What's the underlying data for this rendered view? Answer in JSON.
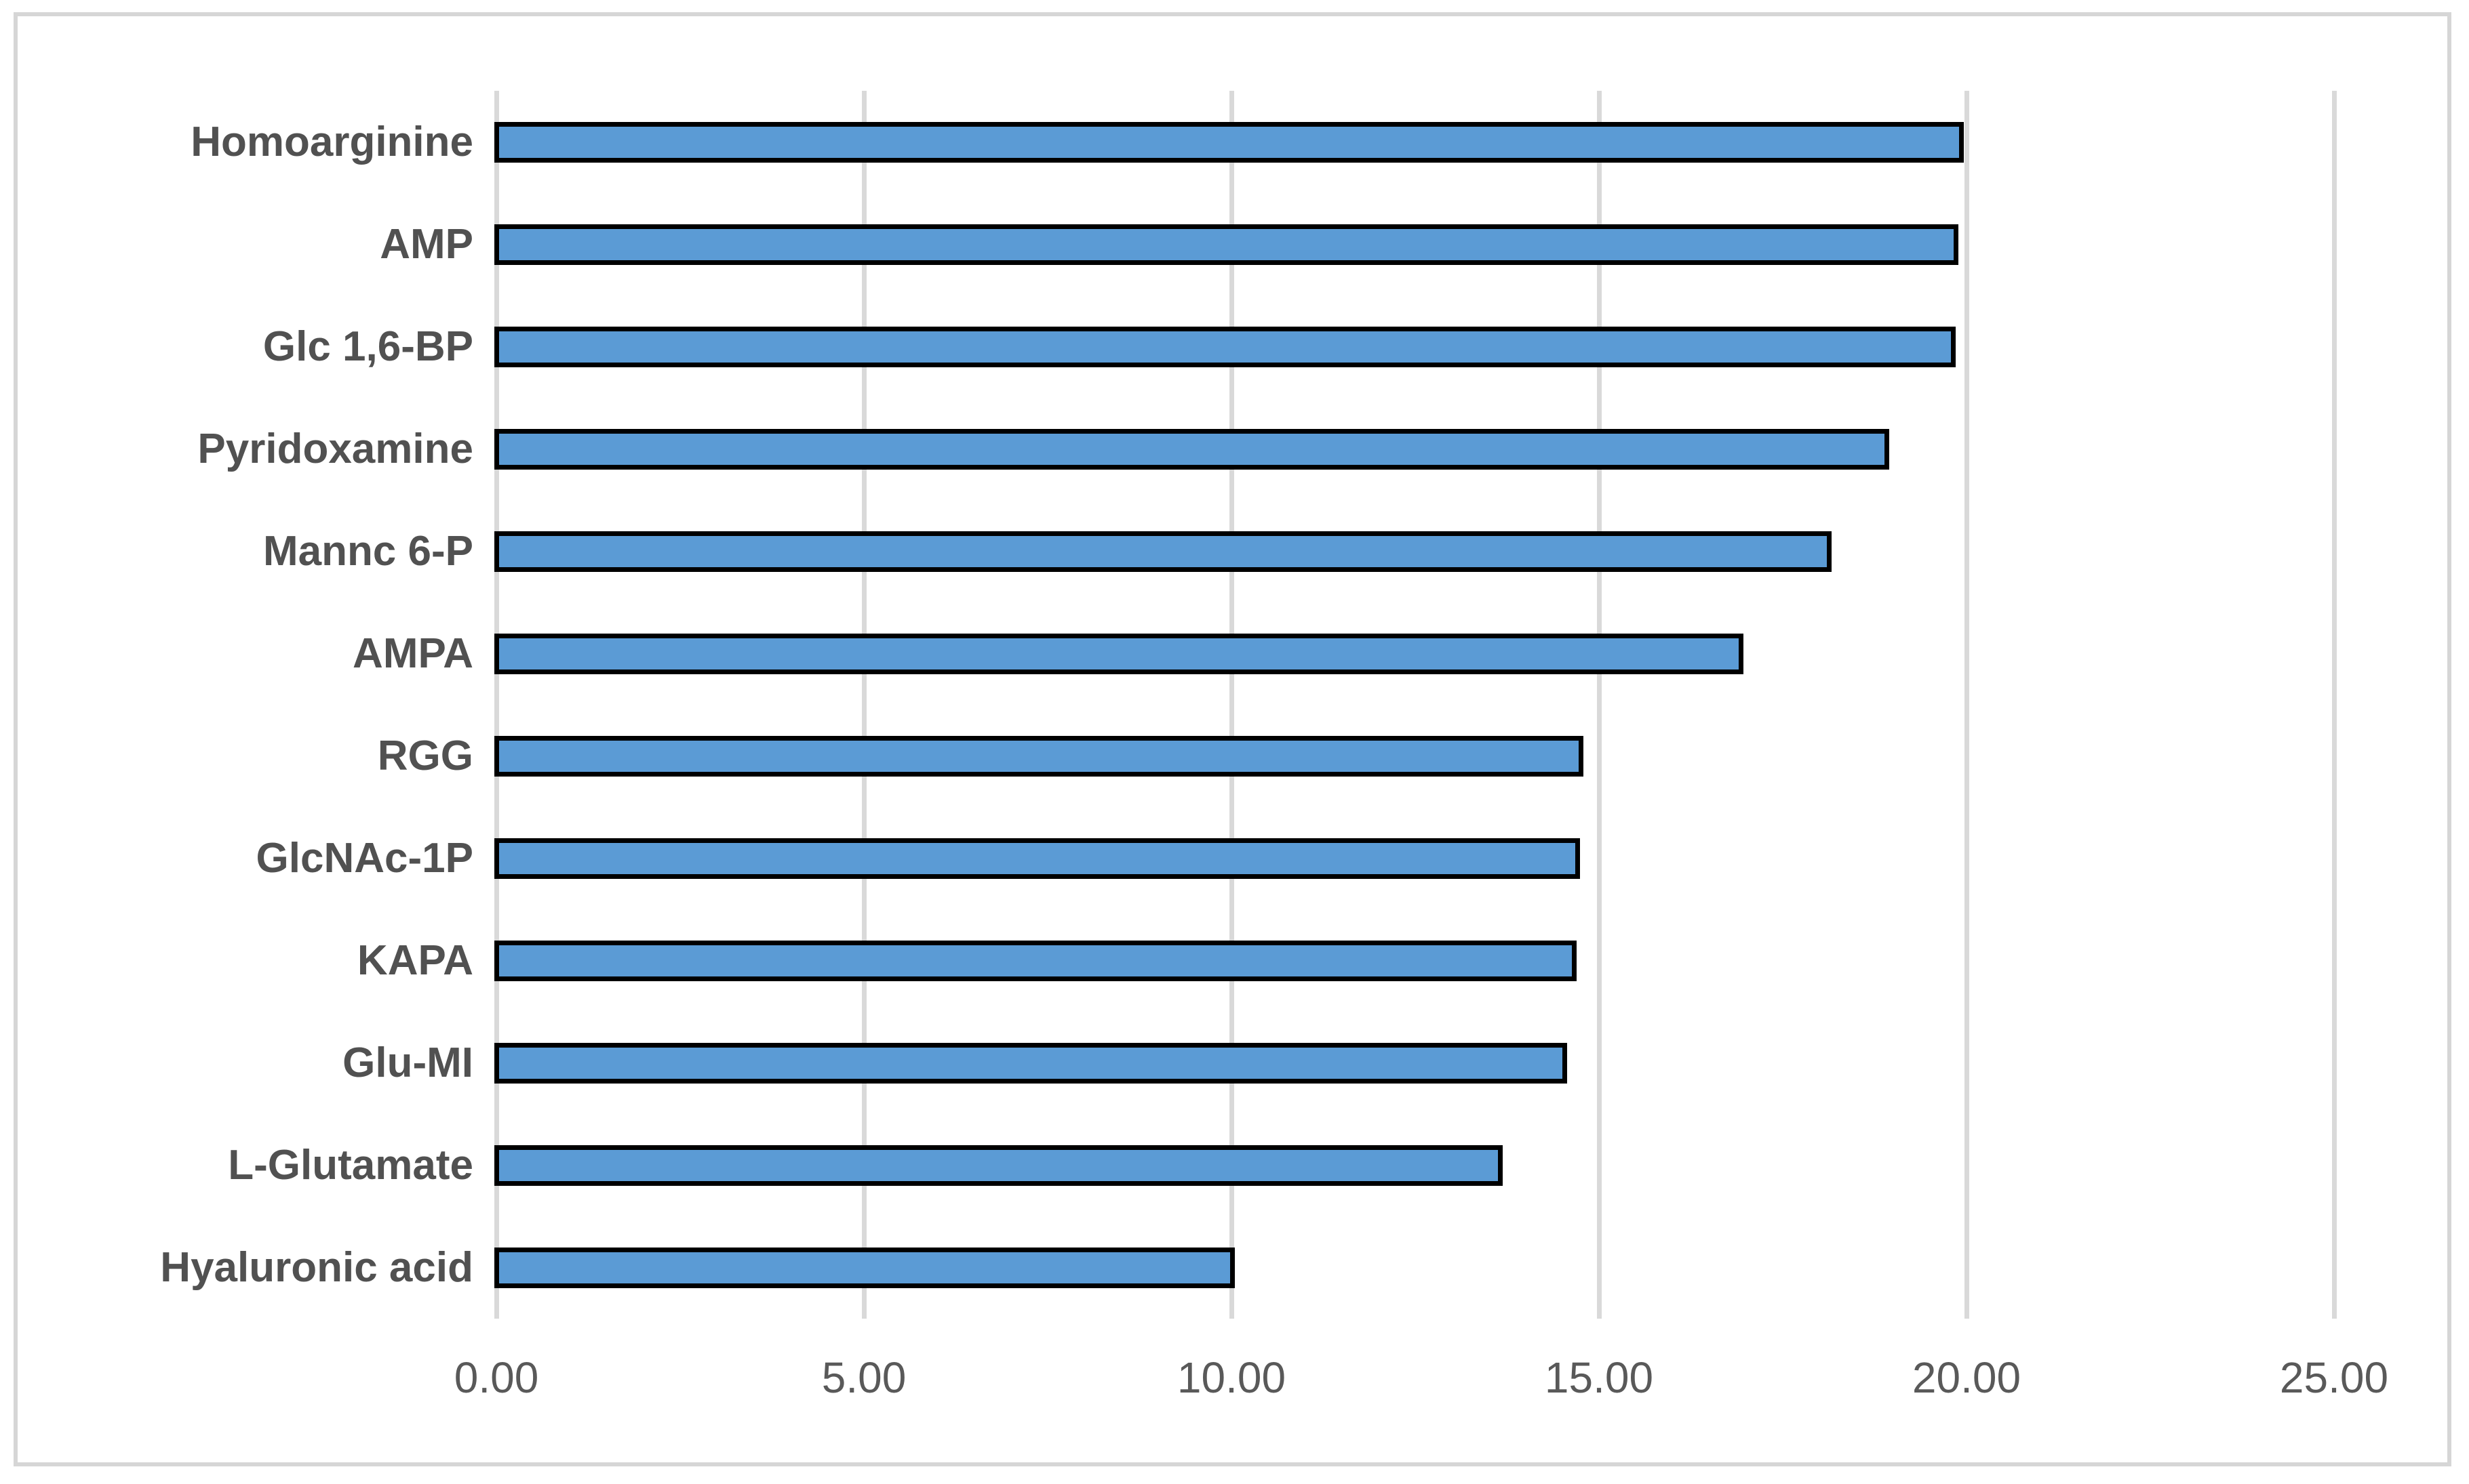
{
  "chart_data": {
    "type": "bar",
    "orientation": "horizontal",
    "title": "",
    "xlabel": "",
    "ylabel": "",
    "legend": "none",
    "grid": "vertical",
    "categories": [
      "Homoarginine",
      "AMP",
      "Glc 1,6-BP",
      "Pyridoxamine",
      "Mannc 6-P",
      "AMPA",
      "RGG",
      "GlcNAc-1P",
      "KAPA",
      "Glu-MI",
      "L-Glutamate",
      "Hyaluronic acid"
    ],
    "values": [
      19.93,
      19.86,
      19.82,
      18.92,
      18.13,
      16.93,
      14.76,
      14.71,
      14.66,
      14.53,
      13.66,
      10.01
    ],
    "xlim": [
      0,
      25
    ],
    "x_tick_values": [
      0,
      5,
      10,
      15,
      20,
      25
    ],
    "x_tick_labels": [
      "0.00",
      "5.00",
      "10.00",
      "15.00",
      "20.00",
      "25.00"
    ],
    "colors": {
      "bar_fill": "#5B9BD5",
      "bar_border": "#000000",
      "gridline": "#D9D9D9",
      "frame_border": "#D6D6D6",
      "category_label": "#515151",
      "tick_label": "#595959",
      "background": "#FFFFFF"
    }
  }
}
